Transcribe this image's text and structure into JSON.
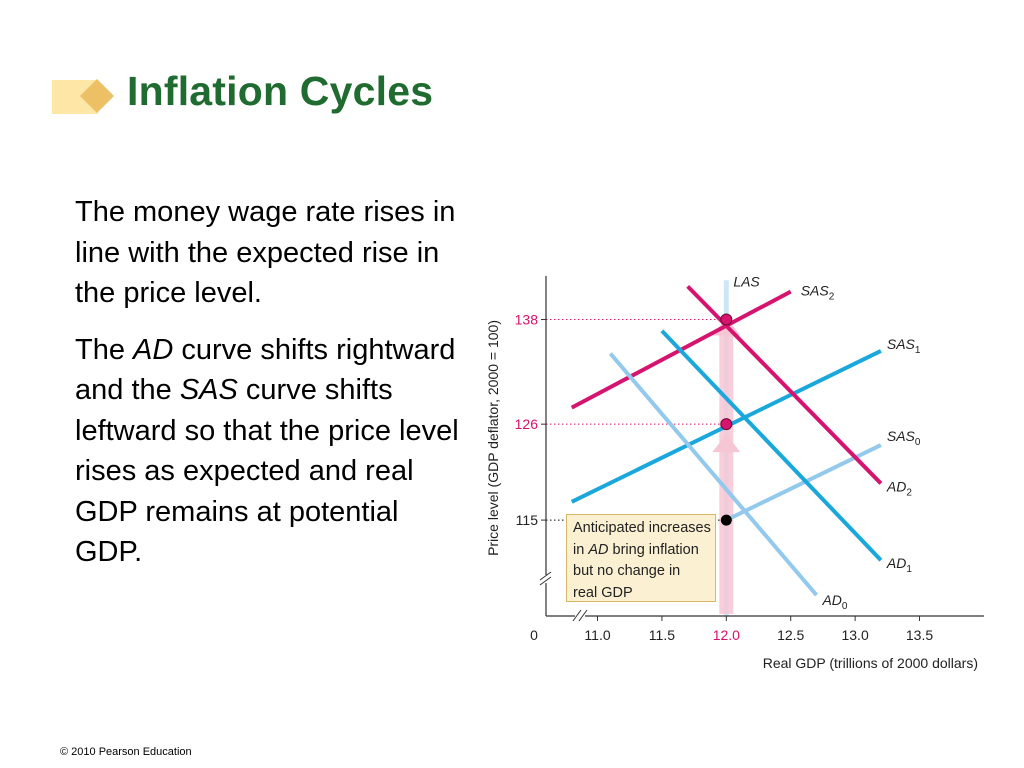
{
  "title": "Inflation Cycles",
  "body": {
    "para1": "The money wage rate rises in line with the expected rise in the price level.",
    "para2": {
      "t1": "The ",
      "t2": "AD",
      "t3": " curve shifts rightward and the ",
      "t4": "SAS",
      "t5": " curve shifts leftward so that the price level rises as expected and real GDP remains at potential GDP."
    }
  },
  "footer": "© 2010 Pearson Education",
  "colors": {
    "title": "#1f6b30",
    "ad0": "#93c9ec",
    "ad1": "#1aa7db",
    "ad2": "#d6136e",
    "las_arrow": "#f6c6d3"
  },
  "chart_data": {
    "type": "line",
    "xlabel": "Real GDP (trillions of 2000 dollars)",
    "ylabel": "Price level (GDP deflator, 2000 = 100)",
    "x_ticks": [
      "11.0",
      "11.5",
      "12.0",
      "12.5",
      "13.0",
      "13.5"
    ],
    "x_tick_values": [
      11.0,
      11.5,
      12.0,
      12.5,
      13.0,
      13.5
    ],
    "origin_label": "0",
    "y_ticks": [
      "115",
      "126",
      "138"
    ],
    "y_tick_values": [
      115,
      126,
      138
    ],
    "xlim": [
      10.6,
      14.0
    ],
    "ylim": [
      104,
      143
    ],
    "axis_breaks": true,
    "series": [
      {
        "id": "las",
        "role": "vertical",
        "label": "LAS",
        "x": 12.0,
        "y_range": [
          104,
          142.5
        ]
      },
      {
        "id": "sas0",
        "label_main": "SAS",
        "label_sub": "0",
        "x": [
          12.0,
          13.2
        ],
        "y": [
          115,
          123.6
        ]
      },
      {
        "id": "sas1",
        "label_main": "SAS",
        "label_sub": "1",
        "x": [
          10.8,
          13.2
        ],
        "y": [
          117.1,
          134.4
        ]
      },
      {
        "id": "sas2",
        "label_main": "SAS",
        "label_sub": "2",
        "x": [
          10.8,
          12.5
        ],
        "y": [
          127.9,
          141.2
        ]
      },
      {
        "id": "ad0",
        "label_main": "AD",
        "label_sub": "0",
        "x": [
          11.1,
          12.7
        ],
        "y": [
          134.1,
          106.4
        ]
      },
      {
        "id": "ad1",
        "label_main": "AD",
        "label_sub": "1",
        "x": [
          11.5,
          13.2
        ],
        "y": [
          136.7,
          110.4
        ]
      },
      {
        "id": "ad2",
        "label_main": "AD",
        "label_sub": "2",
        "x": [
          11.7,
          13.2
        ],
        "y": [
          141.8,
          119.2
        ]
      }
    ],
    "equilibria": [
      {
        "x": 12.0,
        "y": 115,
        "color": "#000000"
      },
      {
        "x": 12.0,
        "y": 126,
        "color": "#d6136e"
      },
      {
        "x": 12.0,
        "y": 138,
        "color": "#d6136e"
      }
    ],
    "annotation": {
      "lines": [
        "Anticipated increases",
        "in AD bring inflation",
        "but no change in",
        "real GDP"
      ],
      "line2_prefix": "in ",
      "line2_italic": "AD",
      "line2_suffix": " bring inflation"
    }
  }
}
